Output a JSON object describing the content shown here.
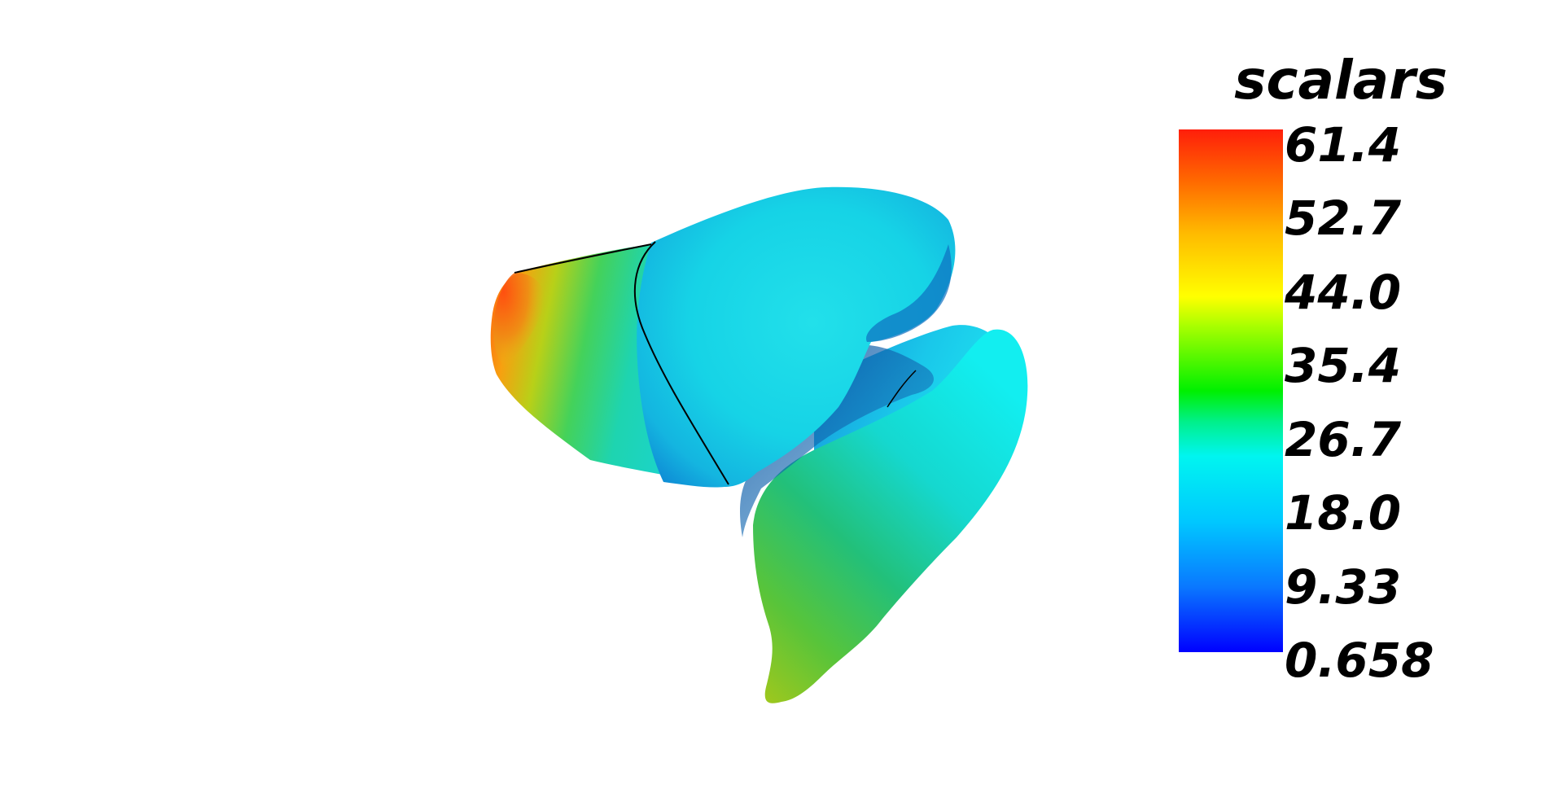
{
  "scalar_bar": {
    "title": "scalars",
    "labels": [
      "61.4",
      "52.7",
      "44.0",
      "35.4",
      "26.7",
      "18.0",
      "9.33",
      "0.658"
    ],
    "range": [
      0.658,
      61.4
    ],
    "colormap": [
      "#0000ff",
      "#00c8ff",
      "#00f5f0",
      "#00f000",
      "#ffff00",
      "#ff6a00",
      "#ff1e0a"
    ]
  },
  "scene": {
    "object": "color-mapped surface mesh",
    "background": "#ffffff"
  }
}
